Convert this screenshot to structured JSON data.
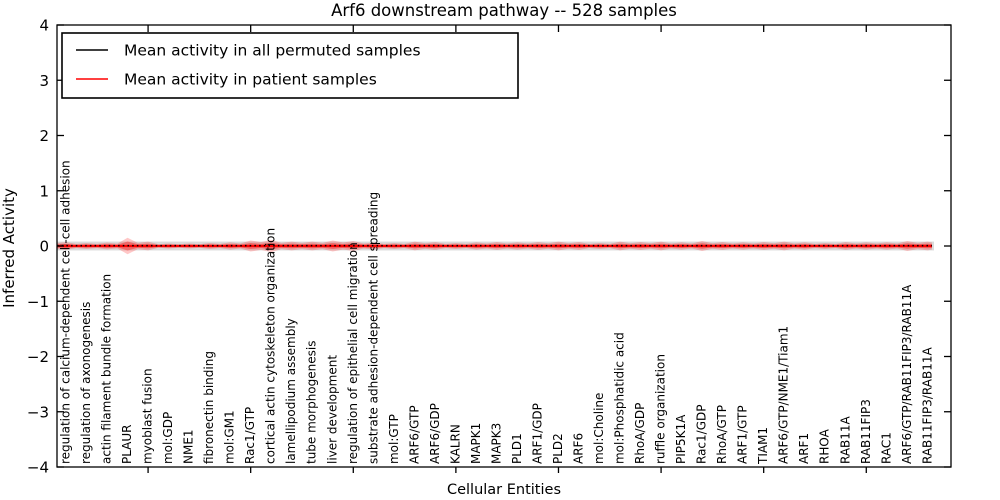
{
  "figure": {
    "title": "Arf6 downstream pathway -- 528 samples",
    "xlabel": "Cellular Entities",
    "ylabel": "Inferred Activity"
  },
  "chart_data": {
    "type": "line",
    "subtype": "mean-activity-with-violin-spread",
    "title": "Arf6 downstream pathway -- 528 samples",
    "xlabel": "Cellular Entities",
    "ylabel": "Inferred Activity",
    "ylim": [
      -4,
      4
    ],
    "yticks": [
      4,
      3,
      2,
      1,
      0,
      -1,
      -2,
      -3,
      -4
    ],
    "grid": false,
    "legend_position": "upper left",
    "categories": [
      "regulation of calcium-dependent cell-cell adhesion",
      "regulation of axonogenesis",
      "actin filament bundle formation",
      "PLAUR",
      "myoblast fusion",
      "mol:GDP",
      "NME1",
      "fibronectin binding",
      "mol:GM1",
      "Rac1/GTP",
      "cortical actin cytoskeleton organization",
      "lamellipodium assembly",
      "tube morphogenesis",
      "liver development",
      "regulation of epithelial cell migration",
      "substrate adhesion-dependent cell spreading",
      "mol:GTP",
      "ARF6/GTP",
      "ARF6/GDP",
      "KALRN",
      "MAPK1",
      "MAPK3",
      "PLD1",
      "ARF1/GDP",
      "PLD2",
      "ARF6",
      "mol:Choline",
      "mol:Phosphatidic acid",
      "RhoA/GDP",
      "ruffle organization",
      "PIP5K1A",
      "Rac1/GDP",
      "RhoA/GTP",
      "ARF1/GTP",
      "TIAM1",
      "ARF6/GTP/NME1/Tiam1",
      "ARF1",
      "RHOA",
      "RAB11A",
      "RAB11FIP3",
      "RAC1",
      "ARF6/GTP/RAB11FIP3/RAB11A",
      "RAB11FIP3/RAB11A"
    ],
    "series": [
      {
        "name": "Mean activity in all permuted samples",
        "color": "#000000",
        "style": "dotted",
        "spread": 0.08,
        "values": [
          0,
          0,
          0,
          0,
          0,
          0,
          0,
          0,
          0,
          0,
          0,
          0,
          0,
          0,
          0,
          0,
          0,
          0,
          0,
          0,
          0,
          0,
          0,
          0,
          0,
          0,
          0,
          0,
          0,
          0,
          0,
          0,
          0,
          0,
          0,
          0,
          0,
          0,
          0,
          0,
          0,
          0,
          0
        ]
      },
      {
        "name": "Mean activity in patient samples",
        "color": "#ff0000",
        "style": "solid",
        "spread_per_entity": [
          0.07,
          0.055,
          0.06,
          0.15,
          0.08,
          0.045,
          0.045,
          0.055,
          0.065,
          0.1,
          0.11,
          0.08,
          0.08,
          0.1,
          0.09,
          0.065,
          0.055,
          0.08,
          0.07,
          0.055,
          0.065,
          0.07,
          0.065,
          0.07,
          0.08,
          0.07,
          0.055,
          0.08,
          0.07,
          0.08,
          0.065,
          0.09,
          0.07,
          0.065,
          0.07,
          0.08,
          0.065,
          0.055,
          0.07,
          0.065,
          0.065,
          0.09,
          0.08
        ],
        "values": [
          0,
          0,
          0,
          0,
          0,
          0,
          0,
          0,
          0,
          0,
          0,
          0,
          0,
          0,
          0,
          0,
          0,
          0,
          0,
          0,
          0,
          0,
          0,
          0,
          0,
          0,
          0,
          0,
          0,
          0,
          0,
          0,
          0,
          0,
          0,
          0,
          0,
          0,
          0,
          0,
          0,
          0,
          0
        ]
      }
    ]
  },
  "legend": {
    "entries": [
      {
        "label": "Mean activity in all permuted samples",
        "color": "#000000"
      },
      {
        "label": "Mean activity in patient samples",
        "color": "#ff0000"
      }
    ]
  },
  "colors": {
    "patient_line": "#ff0000",
    "permuted_line": "#000000",
    "patient_band_outer": "rgba(255,0,0,0.22)",
    "patient_band_inner": "rgba(255,0,0,0.38)",
    "permuted_band": "rgba(150,150,150,0.35)",
    "axis": "#000000",
    "background": "#ffffff"
  }
}
